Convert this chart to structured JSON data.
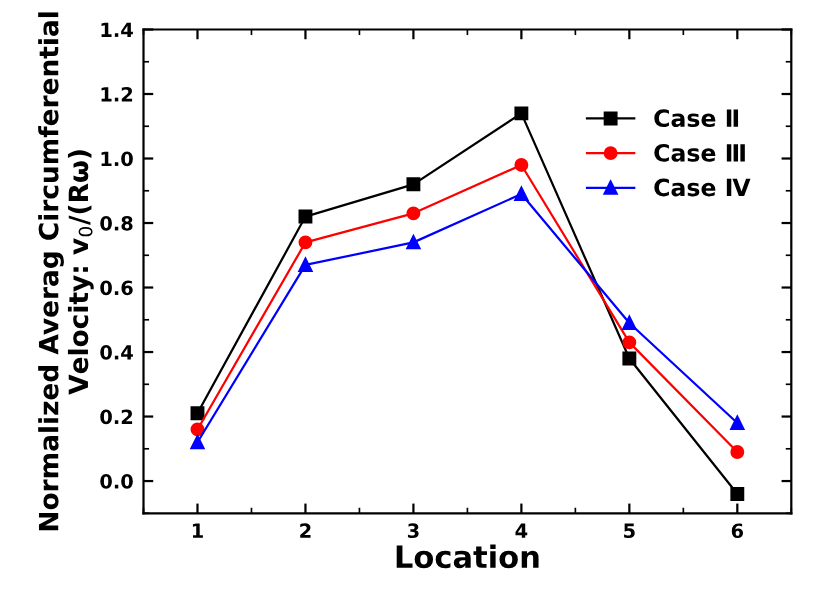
{
  "chart_data": {
    "type": "line",
    "xlabel": "Location",
    "ylabel": "Normalized Averag Circumferential\nVelocity: v$_{0}$/(Rω)",
    "x": [
      1,
      2,
      3,
      4,
      5,
      6
    ],
    "xlim": [
      0.5,
      6.5
    ],
    "xticks": [
      1,
      2,
      3,
      4,
      5,
      6
    ],
    "ylim": [
      -0.1,
      1.4
    ],
    "yticks": [
      {
        "value": 0,
        "label": "0.0"
      },
      0.2,
      0.4,
      0.6,
      0.8,
      {
        "value": 1,
        "label": "1.0"
      },
      1.2,
      1.4
    ],
    "series": [
      {
        "name": "Case Ⅱ",
        "color": "#000000",
        "marker": "square",
        "values": [
          0.21,
          0.82,
          0.92,
          1.14,
          0.38,
          -0.04
        ]
      },
      {
        "name": "Case Ⅲ",
        "color": "#ff0000",
        "marker": "circle",
        "values": [
          0.16,
          0.74,
          0.83,
          0.98,
          0.43,
          0.09
        ]
      },
      {
        "name": "Case Ⅳ",
        "color": "#0000ff",
        "marker": "triangle",
        "values": [
          0.12,
          0.67,
          0.74,
          0.89,
          0.49,
          0.18
        ]
      }
    ],
    "legend": "top right",
    "grid": false
  }
}
